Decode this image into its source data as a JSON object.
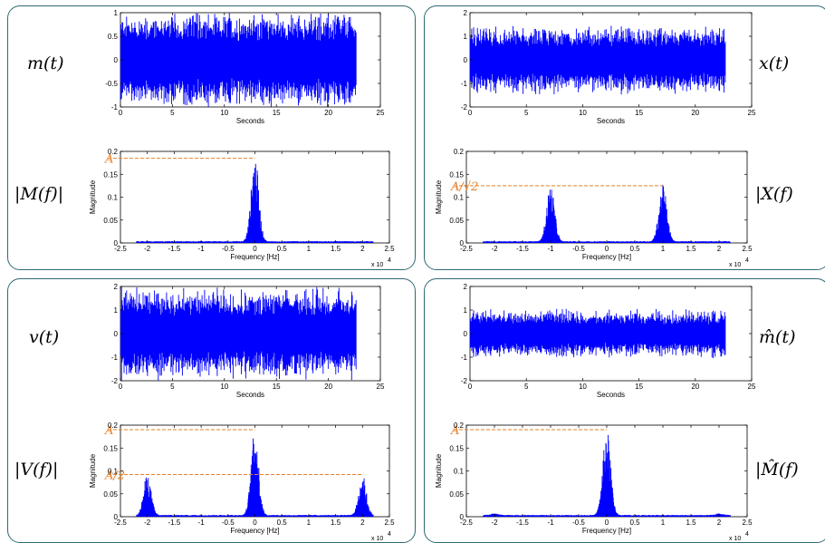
{
  "panels": [
    {
      "id": "m",
      "time_label": "m(t)",
      "freq_label": "|M(f)|",
      "time_chart": {
        "type": "line",
        "xlabel": "Seconds",
        "xlim": [
          0,
          25
        ],
        "xticks": [
          0,
          5,
          10,
          15,
          20,
          25
        ],
        "ylim": [
          -1,
          1
        ],
        "yticks": [
          -1,
          -0.5,
          0,
          0.5,
          1
        ],
        "yticklabels": [
          "-1",
          "-0.5",
          "0",
          "0.5",
          "1"
        ],
        "signal_duration": 22.7,
        "amplitude_envelope": 1.0,
        "color": "#0000ff"
      },
      "freq_chart": {
        "type": "line",
        "xlabel": "Frequency [Hz]",
        "ylabel": "Magnitude",
        "x_exponent_label": "x 10",
        "x_exponent": "4",
        "xlim": [
          -2.5,
          2.5
        ],
        "xticks": [
          -2.5,
          -2,
          -1.5,
          -1,
          -0.5,
          0,
          0.5,
          1,
          1.5,
          2,
          2.5
        ],
        "ylim": [
          0,
          0.2
        ],
        "yticks": [
          0,
          0.05,
          0.1,
          0.15,
          0.2
        ],
        "yticklabels": [
          "0",
          "0.05",
          "0.1",
          "0.15",
          "0.2"
        ],
        "peaks": [
          {
            "center": 0,
            "height": 0.19
          }
        ],
        "ref_lines": [
          {
            "value": 0.185,
            "label": "A"
          }
        ],
        "color": "#0000ff"
      }
    },
    {
      "id": "x",
      "time_label": "x(t)",
      "freq_label": "|X(f)",
      "time_chart": {
        "type": "line",
        "xlabel": "Seconds",
        "xlim": [
          0,
          25
        ],
        "xticks": [
          0,
          5,
          10,
          15,
          20,
          25
        ],
        "ylim": [
          -2,
          2
        ],
        "yticks": [
          -2,
          -1,
          0,
          1,
          2
        ],
        "yticklabels": [
          "-2",
          "-1",
          "0",
          "1",
          "2"
        ],
        "signal_duration": 22.7,
        "amplitude_envelope": 1.4,
        "color": "#0000ff"
      },
      "freq_chart": {
        "type": "line",
        "xlabel": "Frequency [Hz]",
        "ylabel": "Magnitude",
        "x_exponent_label": "x 10",
        "x_exponent": "4",
        "xlim": [
          -2.5,
          2.5
        ],
        "xticks": [
          -2.5,
          -2,
          -1.5,
          -1,
          -0.5,
          0,
          0.5,
          1,
          1.5,
          2,
          2.5
        ],
        "ylim": [
          0,
          0.2
        ],
        "yticks": [
          0,
          0.05,
          0.1,
          0.15,
          0.2
        ],
        "yticklabels": [
          "0",
          "0.05",
          "0.1",
          "0.15",
          "0.2"
        ],
        "peaks": [
          {
            "center": -1,
            "height": 0.125
          },
          {
            "center": 1,
            "height": 0.125
          }
        ],
        "ref_lines": [
          {
            "value": 0.125,
            "label": "A/√2"
          }
        ],
        "color": "#0000ff"
      }
    },
    {
      "id": "v",
      "time_label": "v(t)",
      "freq_label": "|V(f)|",
      "time_chart": {
        "type": "line",
        "xlabel": "Seconds",
        "xlim": [
          0,
          25
        ],
        "xticks": [
          0,
          5,
          10,
          15,
          20,
          25
        ],
        "ylim": [
          -2,
          2
        ],
        "yticks": [
          -2,
          -1,
          0,
          1,
          2
        ],
        "yticklabels": [
          "-2",
          "-1",
          "0",
          "1",
          "2"
        ],
        "signal_duration": 22.7,
        "amplitude_envelope": 1.9,
        "color": "#0000ff"
      },
      "freq_chart": {
        "type": "line",
        "xlabel": "Frequency [Hz]",
        "ylabel": "Magnitude",
        "x_exponent_label": "x 10",
        "x_exponent": "4",
        "xlim": [
          -2.5,
          2.5
        ],
        "xticks": [
          -2.5,
          -2,
          -1.5,
          -1,
          -0.5,
          0,
          0.5,
          1,
          1.5,
          2,
          2.5
        ],
        "ylim": [
          0,
          0.2
        ],
        "yticks": [
          0,
          0.05,
          0.1,
          0.15,
          0.2
        ],
        "yticklabels": [
          "0",
          "0.05",
          "0.1",
          "0.15",
          "0.2"
        ],
        "peaks": [
          {
            "center": -2,
            "height": 0.09
          },
          {
            "center": 0,
            "height": 0.19
          },
          {
            "center": 2,
            "height": 0.09
          }
        ],
        "ref_lines": [
          {
            "value": 0.19,
            "label": "A"
          },
          {
            "value": 0.092,
            "label": "A/2"
          }
        ],
        "color": "#0000ff"
      }
    },
    {
      "id": "mhat",
      "time_label": "m̂(t)",
      "freq_label": "|M̂(f)",
      "time_chart": {
        "type": "line",
        "xlabel": "Seconds",
        "xlim": [
          0,
          25
        ],
        "xticks": [
          0,
          5,
          10,
          15,
          20,
          25
        ],
        "ylim": [
          -2,
          2
        ],
        "yticks": [
          -2,
          -1,
          0,
          1,
          2
        ],
        "yticklabels": [
          "-2",
          "-1",
          "0",
          "1",
          "2"
        ],
        "signal_duration": 22.7,
        "amplitude_envelope": 1.0,
        "color": "#0000ff"
      },
      "freq_chart": {
        "type": "line",
        "xlabel": "Frequency [Hz]",
        "ylabel": "Magnitude",
        "x_exponent_label": "x 10",
        "x_exponent": "4",
        "xlim": [
          -2.5,
          2.5
        ],
        "xticks": [
          -2.5,
          -2,
          -1.5,
          -1,
          -0.5,
          0,
          0.5,
          1,
          1.5,
          2,
          2.5
        ],
        "ylim": [
          0,
          0.2
        ],
        "yticks": [
          0,
          0.05,
          0.1,
          0.15,
          0.2
        ],
        "yticklabels": [
          "0",
          "0.05",
          "0.1",
          "0.15",
          "0.2"
        ],
        "peaks": [
          {
            "center": 0,
            "height": 0.19
          },
          {
            "center": -2,
            "height": 0.004
          },
          {
            "center": 2,
            "height": 0.004
          }
        ],
        "ref_lines": [
          {
            "value": 0.19,
            "label": "A"
          }
        ],
        "color": "#0000ff"
      }
    }
  ],
  "colors": {
    "signal": "#0000ff",
    "reference": "#e6802a",
    "border": "#2f6b73"
  }
}
